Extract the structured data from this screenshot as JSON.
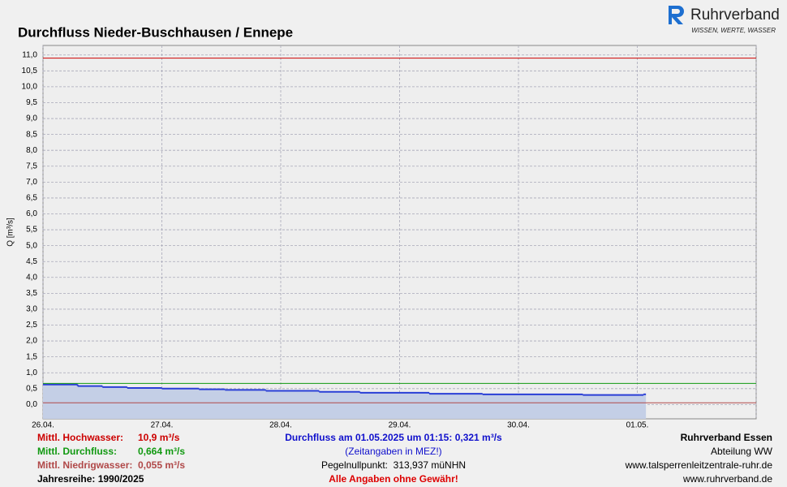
{
  "chart_data": {
    "type": "line",
    "title": "Durchfluss Nieder-Buschhausen / Ennepe",
    "y_label": "Q [m³/s]",
    "drawstyle": "steps-post",
    "area": true,
    "grid": true,
    "logo": {
      "name": "Ruhrverband",
      "tagline": "WISSEN, WERTE, WASSER"
    },
    "x": [
      "2025-04-26T00:00",
      "2025-04-26T07:00",
      "2025-04-26T12:00",
      "2025-04-26T17:00",
      "2025-04-27T00:00",
      "2025-04-27T07:30",
      "2025-04-27T12:45",
      "2025-04-27T21:00",
      "2025-04-28T07:45",
      "2025-04-28T16:00",
      "2025-04-29T06:00",
      "2025-04-29T16:45",
      "2025-04-30T13:00",
      "2025-05-01T00:30",
      "2025-05-01T01:15"
    ],
    "series": [
      {
        "name": "Durchfluss",
        "color": "#2a3fd6",
        "fill": "#c4cfe6",
        "values": [
          0.63,
          0.58,
          0.55,
          0.52,
          0.5,
          0.48,
          0.46,
          0.43,
          0.4,
          0.37,
          0.34,
          0.32,
          0.3,
          0.3,
          0.321
        ]
      }
    ],
    "xlim": [
      "2025-04-26T00:00",
      "2025-05-02T00:00"
    ],
    "xticks": [
      {
        "value": "2025-04-26T00:00",
        "label": "26.04."
      },
      {
        "value": "2025-04-27T00:00",
        "label": "27.04."
      },
      {
        "value": "2025-04-28T00:00",
        "label": "28.04."
      },
      {
        "value": "2025-04-29T00:00",
        "label": "29.04."
      },
      {
        "value": "2025-04-30T00:00",
        "label": "30.04."
      },
      {
        "value": "2025-05-01T00:00",
        "label": "01.05."
      },
      {
        "value": "2025-05-02T00:00",
        "label": ""
      }
    ],
    "ylim": [
      -0.45,
      11.3
    ],
    "yticks": [
      {
        "value": 0,
        "label": "0,0"
      },
      {
        "value": 0.5,
        "label": "0,5"
      },
      {
        "value": 1,
        "label": "1,0"
      },
      {
        "value": 1.5,
        "label": "1,5"
      },
      {
        "value": 2,
        "label": "2,0"
      },
      {
        "value": 2.5,
        "label": "2,5"
      },
      {
        "value": 3,
        "label": "3,0"
      },
      {
        "value": 3.5,
        "label": "3,5"
      },
      {
        "value": 4,
        "label": "4,0"
      },
      {
        "value": 4.5,
        "label": "4,5"
      },
      {
        "value": 5,
        "label": "5,0"
      },
      {
        "value": 5.5,
        "label": "5,5"
      },
      {
        "value": 6,
        "label": "6,0"
      },
      {
        "value": 6.5,
        "label": "6,5"
      },
      {
        "value": 7,
        "label": "7,0"
      },
      {
        "value": 7.5,
        "label": "7,5"
      },
      {
        "value": 8,
        "label": "8,0"
      },
      {
        "value": 8.5,
        "label": "8,5"
      },
      {
        "value": 9,
        "label": "9,0"
      },
      {
        "value": 9.5,
        "label": "9,5"
      },
      {
        "value": 10,
        "label": "10,0"
      },
      {
        "value": 10.5,
        "label": "10,5"
      },
      {
        "value": 11,
        "label": "11,0"
      }
    ],
    "reference_lines": [
      {
        "name": "Mittl. Hochwasser:",
        "value": 10.9,
        "label": "10,9 m³/s",
        "color": "#cc0000"
      },
      {
        "name": "Mittl. Durchfluss:",
        "value": 0.664,
        "label": "0,664 m³/s",
        "color": "#119911"
      },
      {
        "name": "Mittl. Niedrigwasser:",
        "value": 0.055,
        "label": "0,055 m³/s",
        "color": "#b04848"
      }
    ],
    "series_years": "Jahresreihe: 1990/2025",
    "annotations": {
      "current": "Durchfluss am 01.05.2025 um 01:15: 0,321 m³/s",
      "timezone": "(Zeitangaben in MEZ!)",
      "gauge": "Pegelnullpunkt:  313,937 müNHN",
      "disclaimer": "Alle Angaben ohne Gewähr!"
    },
    "footer": [
      "Ruhrverband Essen",
      "Abteilung WW",
      "www.talsperrenleitzentrale-ruhr.de",
      "www.ruhrverband.de"
    ]
  }
}
